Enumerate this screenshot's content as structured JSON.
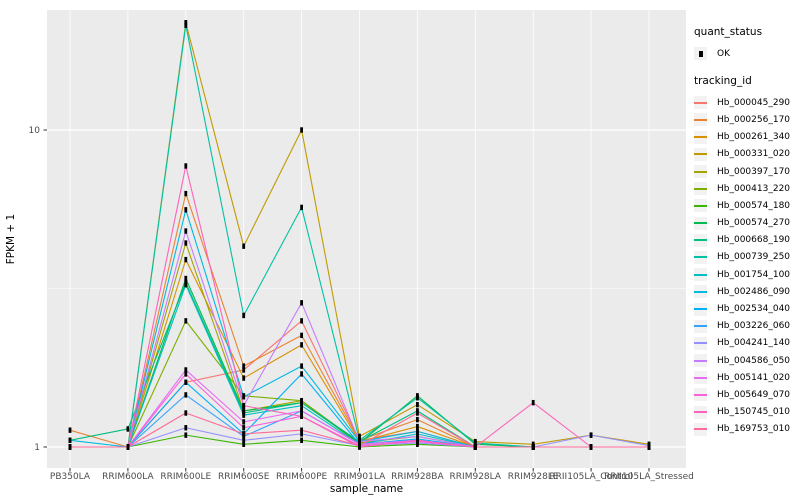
{
  "figure": {
    "background": "#FFFFFF",
    "panel_color": "#EBEBEB",
    "gridline_color": "#FFFFFF",
    "tick_color": "#333333",
    "tick_label_color": "#4D4D4D",
    "axis_title_color": "#000000",
    "point_color": "#000000",
    "legend_key_color": "#F2F2F2"
  },
  "legend": {
    "quant_status_title": "quant_status",
    "quant_status_items": [
      {
        "label": "OK",
        "marker": "black-square-point"
      }
    ],
    "tracking_id_title": "tracking_id"
  },
  "chart_data": {
    "type": "line",
    "title": "",
    "xlabel": "sample_name",
    "ylabel": "FPKM + 1",
    "y_scale": "log10",
    "ylim": [
      0.87,
      24
    ],
    "y_ticks": [
      {
        "label": "1",
        "value": 1
      },
      {
        "label": "10",
        "value": 10
      }
    ],
    "y_minor_gridlines": [
      3.1623
    ],
    "grid": true,
    "legend_position": "right",
    "point_marker": "small-black-rect",
    "categories": [
      "PB350LA",
      "RRIM600LA",
      "RRIM600LE",
      "RRIM600SE",
      "RRIM600PE",
      "RRIM901LA",
      "RRIM928BA",
      "RRIM928LA",
      "RRIM928LE",
      "RRII105LA_Control",
      "RRII105LA_Stressed"
    ],
    "series": [
      {
        "name": "Hb_000045_290",
        "color": "#F8766D",
        "quant_status": "OK",
        "values": [
          1.0,
          1.0,
          1.6,
          1.75,
          2.5,
          1.05,
          1.12,
          1.0,
          1.0,
          1.0,
          1.0
        ]
      },
      {
        "name": "Hb_000256_170",
        "color": "#EA8331",
        "quant_status": "OK",
        "values": [
          1.13,
          1.0,
          6.3,
          1.8,
          2.25,
          1.05,
          1.22,
          1.0,
          1.0,
          1.0,
          1.0
        ]
      },
      {
        "name": "Hb_000261_340",
        "color": "#D89000",
        "quant_status": "OK",
        "values": [
          1.0,
          1.0,
          3.9,
          1.65,
          2.1,
          1.04,
          1.16,
          1.0,
          1.0,
          1.0,
          1.0
        ]
      },
      {
        "name": "Hb_000331_020",
        "color": "#C09B00",
        "quant_status": "OK",
        "values": [
          1.0,
          1.0,
          21.8,
          4.3,
          10.0,
          1.08,
          1.36,
          1.04,
          1.02,
          1.09,
          1.02
        ]
      },
      {
        "name": "Hb_000397_170",
        "color": "#A3A500",
        "quant_status": "OK",
        "values": [
          1.0,
          1.0,
          4.4,
          1.3,
          1.4,
          1.02,
          1.05,
          1.0,
          1.0,
          1.0,
          1.0
        ]
      },
      {
        "name": "Hb_000413_220",
        "color": "#7CAE00",
        "quant_status": "OK",
        "values": [
          1.0,
          1.0,
          2.5,
          1.45,
          1.4,
          1.03,
          1.08,
          1.0,
          1.0,
          1.0,
          1.0
        ]
      },
      {
        "name": "Hb_000574_180",
        "color": "#39B600",
        "quant_status": "OK",
        "values": [
          1.0,
          1.0,
          1.09,
          1.02,
          1.05,
          1.0,
          1.02,
          1.0,
          1.0,
          1.0,
          1.0
        ]
      },
      {
        "name": "Hb_000574_270",
        "color": "#00BB4E",
        "quant_status": "OK",
        "values": [
          1.0,
          1.0,
          3.4,
          1.3,
          1.38,
          1.03,
          1.45,
          1.02,
          1.0,
          1.0,
          1.0
        ]
      },
      {
        "name": "Hb_000668_190",
        "color": "#00BF7D",
        "quant_status": "OK",
        "values": [
          1.05,
          1.14,
          3.3,
          1.28,
          1.38,
          1.04,
          1.3,
          1.0,
          1.0,
          1.0,
          1.0
        ]
      },
      {
        "name": "Hb_000739_250",
        "color": "#00C1A3",
        "quant_status": "OK",
        "values": [
          1.0,
          1.0,
          21.4,
          2.6,
          5.7,
          1.05,
          1.43,
          1.03,
          1.0,
          1.0,
          1.0
        ]
      },
      {
        "name": "Hb_001754_100",
        "color": "#00BFC4",
        "quant_status": "OK",
        "values": [
          1.0,
          1.0,
          3.25,
          1.26,
          1.35,
          1.02,
          1.1,
          1.0,
          1.0,
          1.0,
          1.0
        ]
      },
      {
        "name": "Hb_002486_090",
        "color": "#00BAE0",
        "quant_status": "OK",
        "values": [
          1.05,
          1.0,
          5.6,
          1.44,
          1.8,
          1.04,
          1.12,
          1.0,
          1.0,
          1.0,
          1.0
        ]
      },
      {
        "name": "Hb_002534_040",
        "color": "#00B0F6",
        "quant_status": "OK",
        "values": [
          1.0,
          1.0,
          1.6,
          1.1,
          1.7,
          1.02,
          1.06,
          1.0,
          1.0,
          1.0,
          1.0
        ]
      },
      {
        "name": "Hb_003226_060",
        "color": "#35A2FF",
        "quant_status": "OK",
        "values": [
          1.0,
          1.0,
          1.46,
          1.08,
          1.3,
          1.02,
          1.05,
          1.0,
          1.0,
          1.0,
          1.0
        ]
      },
      {
        "name": "Hb_004241_140",
        "color": "#9590FF",
        "quant_status": "OK",
        "values": [
          1.0,
          1.0,
          1.15,
          1.05,
          1.1,
          1.01,
          1.03,
          1.0,
          1.0,
          1.09,
          1.01
        ]
      },
      {
        "name": "Hb_004586_050",
        "color": "#C77CFF",
        "quant_status": "OK",
        "values": [
          1.0,
          1.0,
          4.8,
          1.35,
          2.85,
          1.04,
          1.08,
          1.0,
          1.0,
          1.0,
          1.0
        ]
      },
      {
        "name": "Hb_005141_020",
        "color": "#E76BF3",
        "quant_status": "OK",
        "values": [
          1.0,
          1.0,
          1.75,
          1.2,
          1.3,
          1.02,
          1.05,
          1.0,
          1.0,
          1.0,
          1.0
        ]
      },
      {
        "name": "Hb_005649_070",
        "color": "#FA62DB",
        "quant_status": "OK",
        "values": [
          1.0,
          1.0,
          1.7,
          1.15,
          1.25,
          1.01,
          1.04,
          1.0,
          1.0,
          1.0,
          1.0
        ]
      },
      {
        "name": "Hb_150745_010",
        "color": "#FF62BC",
        "quant_status": "OK",
        "values": [
          1.0,
          1.0,
          7.7,
          1.35,
          1.25,
          1.0,
          1.05,
          1.0,
          1.38,
          1.0,
          1.0
        ]
      },
      {
        "name": "Hb_169753_010",
        "color": "#FF6A98",
        "quant_status": "OK",
        "values": [
          1.0,
          1.0,
          1.28,
          1.1,
          1.13,
          1.01,
          1.28,
          1.0,
          1.0,
          1.0,
          1.0
        ]
      }
    ]
  }
}
